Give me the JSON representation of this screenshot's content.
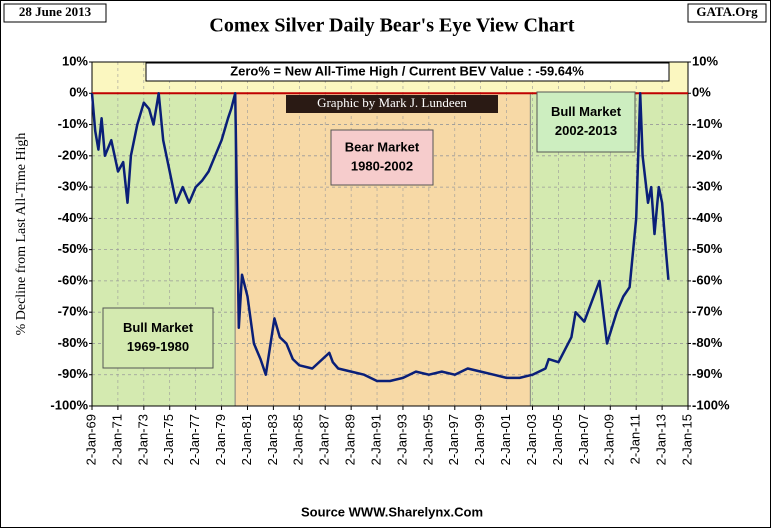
{
  "chart_data": {
    "type": "line",
    "title": "Comex Silver Daily Bear's Eye View Chart",
    "date_label": "28 June 2013",
    "corner_label": "GATA.Org",
    "ylabel": "% Decline from Last All-Time High",
    "info_box": "Zero% = New All-Time High  / Current BEV Value : -59.64%",
    "credit": "Graphic by Mark J. Lundeen",
    "source": "Source WWW.Sharelynx.Com",
    "color": "#0a1f78",
    "reference_line": {
      "value": 0,
      "color": "#c00000"
    },
    "highlight_band": {
      "range": [
        0,
        10
      ],
      "color": "#fbf7c0"
    },
    "regions": [
      {
        "lines": [
          "Bull Market",
          "1969-1980"
        ],
        "start": "1969-01-02",
        "end": "1980-01-21",
        "color": "#d4eab0",
        "box_color": "#d4eab0"
      },
      {
        "lines": [
          "Bear Market",
          "1980-2002"
        ],
        "start": "1980-01-21",
        "end": "2002-11-01",
        "color": "#f7d9a6",
        "box_color": "#f6cccc"
      },
      {
        "lines": [
          "Bull Market",
          "2002-2013"
        ],
        "start": "2002-11-01",
        "end": "2015-01-02",
        "color": "#d4eab0",
        "box_color": "#cdeec0"
      }
    ],
    "grid": true,
    "xlim": [
      "1969-01-02",
      "2015-01-02"
    ],
    "xticks": [
      {
        "value": "1969-01-02",
        "label": "2-Jan-69"
      },
      {
        "value": "1971-01-02",
        "label": "2-Jan-71"
      },
      {
        "value": "1973-01-02",
        "label": "2-Jan-73"
      },
      {
        "value": "1975-01-02",
        "label": "2-Jan-75"
      },
      {
        "value": "1977-01-02",
        "label": "2-Jan-77"
      },
      {
        "value": "1979-01-02",
        "label": "2-Jan-79"
      },
      {
        "value": "1981-01-02",
        "label": "2-Jan-81"
      },
      {
        "value": "1983-01-02",
        "label": "2-Jan-83"
      },
      {
        "value": "1985-01-02",
        "label": "2-Jan-85"
      },
      {
        "value": "1987-01-02",
        "label": "2-Jan-87"
      },
      {
        "value": "1989-01-02",
        "label": "2-Jan-89"
      },
      {
        "value": "1991-01-02",
        "label": "2-Jan-91"
      },
      {
        "value": "1993-01-02",
        "label": "2-Jan-93"
      },
      {
        "value": "1995-01-02",
        "label": "2-Jan-95"
      },
      {
        "value": "1997-01-02",
        "label": "2-Jan-97"
      },
      {
        "value": "1999-01-02",
        "label": "2-Jan-99"
      },
      {
        "value": "2001-01-02",
        "label": "2-Jan-01"
      },
      {
        "value": "2003-01-02",
        "label": "2-Jan-03"
      },
      {
        "value": "2005-01-02",
        "label": "2-Jan-05"
      },
      {
        "value": "2007-01-02",
        "label": "2-Jan-07"
      },
      {
        "value": "2009-01-02",
        "label": "2-Jan-09"
      },
      {
        "value": "2011-01-02",
        "label": "2-Jan-11"
      },
      {
        "value": "2013-01-02",
        "label": "2-Jan-13"
      },
      {
        "value": "2015-01-02",
        "label": "2-Jan-15"
      }
    ],
    "ylim": [
      -100,
      10
    ],
    "yticks": [
      {
        "value": 10,
        "label": "10%"
      },
      {
        "value": 0,
        "label": "0%"
      },
      {
        "value": -10,
        "label": "-10%"
      },
      {
        "value": -20,
        "label": "-20%"
      },
      {
        "value": -30,
        "label": "-30%"
      },
      {
        "value": -40,
        "label": "-40%"
      },
      {
        "value": -50,
        "label": "-50%"
      },
      {
        "value": -60,
        "label": "-60%"
      },
      {
        "value": -70,
        "label": "-70%"
      },
      {
        "value": -80,
        "label": "-80%"
      },
      {
        "value": -90,
        "label": "-90%"
      },
      {
        "value": -100,
        "label": "-100%"
      }
    ],
    "x": [
      "1969-01-02",
      "1969-04-01",
      "1969-07-01",
      "1969-10-01",
      "1970-01-02",
      "1970-07-01",
      "1971-01-04",
      "1971-06-01",
      "1971-10-01",
      "1972-01-03",
      "1972-07-03",
      "1973-01-02",
      "1973-06-01",
      "1973-10-01",
      "1974-02-25",
      "1974-07-01",
      "1975-01-02",
      "1975-07-01",
      "1976-01-02",
      "1976-07-01",
      "1977-01-03",
      "1977-07-01",
      "1978-01-03",
      "1978-07-03",
      "1979-01-02",
      "1979-07-02",
      "1979-10-01",
      "1980-01-21",
      "1980-03-03",
      "1980-05-01",
      "1980-08-01",
      "1981-01-02",
      "1981-07-01",
      "1982-01-04",
      "1982-06-01",
      "1983-02-01",
      "1983-07-01",
      "1984-01-03",
      "1984-07-02",
      "1985-01-02",
      "1986-01-02",
      "1987-04-27",
      "1987-08-03",
      "1988-01-04",
      "1989-01-03",
      "1990-01-02",
      "1991-01-02",
      "1992-01-02",
      "1993-01-04",
      "1994-01-03",
      "1995-01-03",
      "1996-01-02",
      "1997-01-02",
      "1998-01-02",
      "1999-01-04",
      "2000-01-03",
      "2001-01-02",
      "2002-01-02",
      "2003-01-02",
      "2004-01-02",
      "2004-04-01",
      "2005-01-03",
      "2006-01-03",
      "2006-05-01",
      "2007-01-02",
      "2008-03-03",
      "2008-10-01",
      "2009-07-01",
      "2010-01-04",
      "2010-07-01",
      "2011-01-03",
      "2011-04-25",
      "2011-07-01",
      "2011-12-01",
      "2012-03-01",
      "2012-06-01",
      "2012-10-01",
      "2013-01-02",
      "2013-04-15",
      "2013-06-28"
    ],
    "values": [
      0,
      -12,
      -18,
      -8,
      -20,
      -15,
      -25,
      -22,
      -35,
      -20,
      -10,
      -3,
      -5,
      -10,
      0,
      -15,
      -25,
      -35,
      -30,
      -35,
      -30,
      -28,
      -25,
      -20,
      -15,
      -8,
      -5,
      0,
      -30,
      -75,
      -58,
      -65,
      -80,
      -85,
      -90,
      -72,
      -78,
      -80,
      -85,
      -87,
      -88,
      -83,
      -86,
      -88,
      -89,
      -90,
      -92,
      -92,
      -91,
      -89,
      -90,
      -89,
      -90,
      -88,
      -89,
      -90,
      -91,
      -91,
      -90,
      -88,
      -85,
      -86,
      -78,
      -70,
      -73,
      -60,
      -80,
      -70,
      -65,
      -62,
      -40,
      0,
      -20,
      -35,
      -30,
      -45,
      -30,
      -35,
      -50,
      -59.64
    ]
  }
}
